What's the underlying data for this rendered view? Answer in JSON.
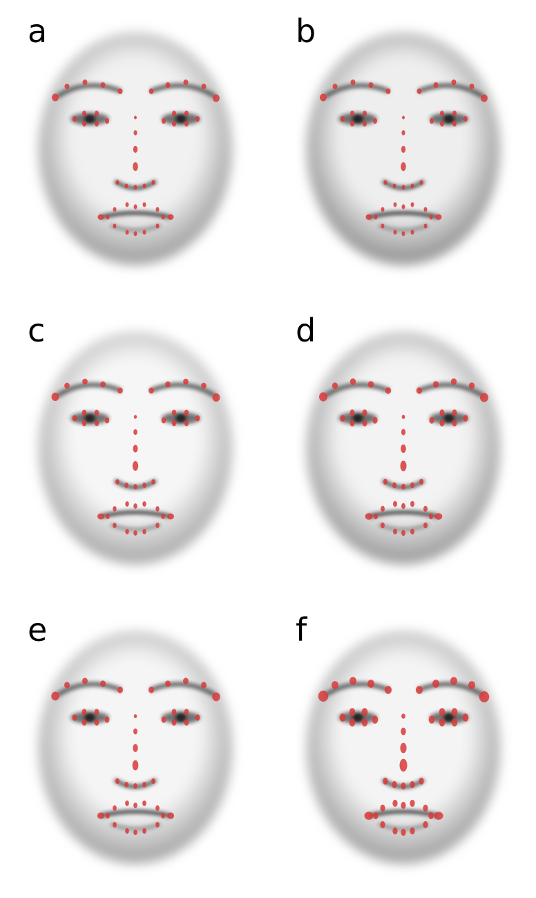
{
  "panels": [
    {
      "label": "a",
      "face_tone": "#9a9a9a",
      "highlight": "#f1f1f1",
      "landmark_scale": 1.0
    },
    {
      "label": "b",
      "face_tone": "#8e8e8e",
      "highlight": "#eeeeee",
      "landmark_scale": 1.0
    },
    {
      "label": "c",
      "face_tone": "#a6a6a6",
      "highlight": "#f6f6f6",
      "landmark_scale": 1.1
    },
    {
      "label": "d",
      "face_tone": "#969696",
      "highlight": "#f3f3f3",
      "landmark_scale": 1.2
    },
    {
      "label": "e",
      "face_tone": "#a0a0a0",
      "highlight": "#f5f5f5",
      "landmark_scale": 1.15
    },
    {
      "label": "f",
      "face_tone": "#9c9c9c",
      "highlight": "#f4f4f4",
      "landmark_scale": 1.45
    }
  ],
  "colors": {
    "landmark": "#d93a3a",
    "feature_dark": "#1e1e1e"
  }
}
